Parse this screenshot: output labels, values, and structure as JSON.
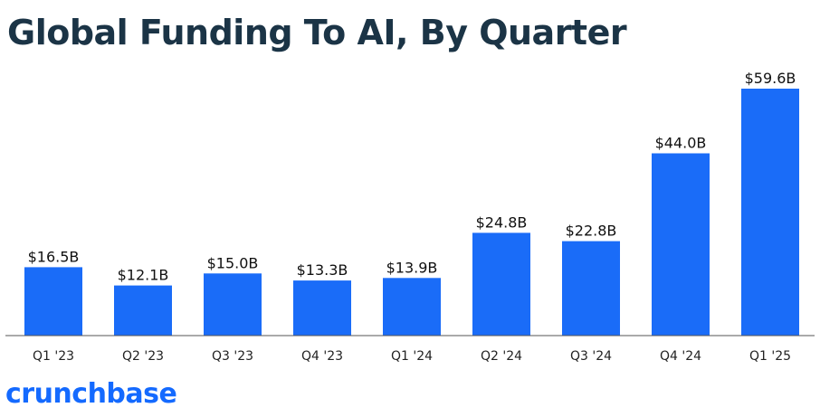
{
  "brand": {
    "name": "crunchbase",
    "color": "#146aff"
  },
  "chart_data": {
    "type": "bar",
    "title": "Global Funding To AI, By Quarter",
    "xlabel": "",
    "ylabel": "",
    "categories": [
      "Q1 '23",
      "Q2 '23",
      "Q3 '23",
      "Q4 '23",
      "Q1 '24",
      "Q2 '24",
      "Q3 '24",
      "Q4 '24",
      "Q1 '25"
    ],
    "values": [
      16.5,
      12.1,
      15.0,
      13.3,
      13.9,
      24.8,
      22.8,
      44.0,
      59.6
    ],
    "data_labels": [
      "$16.5B",
      "$12.1B",
      "$15.0B",
      "$13.3B",
      "$13.9B",
      "$24.8B",
      "$22.8B",
      "$44.0B",
      "$59.6B"
    ],
    "unit": "USD billions",
    "ylim": [
      0,
      59.6
    ],
    "grid": false,
    "legend": "none",
    "bar_color": "#1a6cf8"
  }
}
